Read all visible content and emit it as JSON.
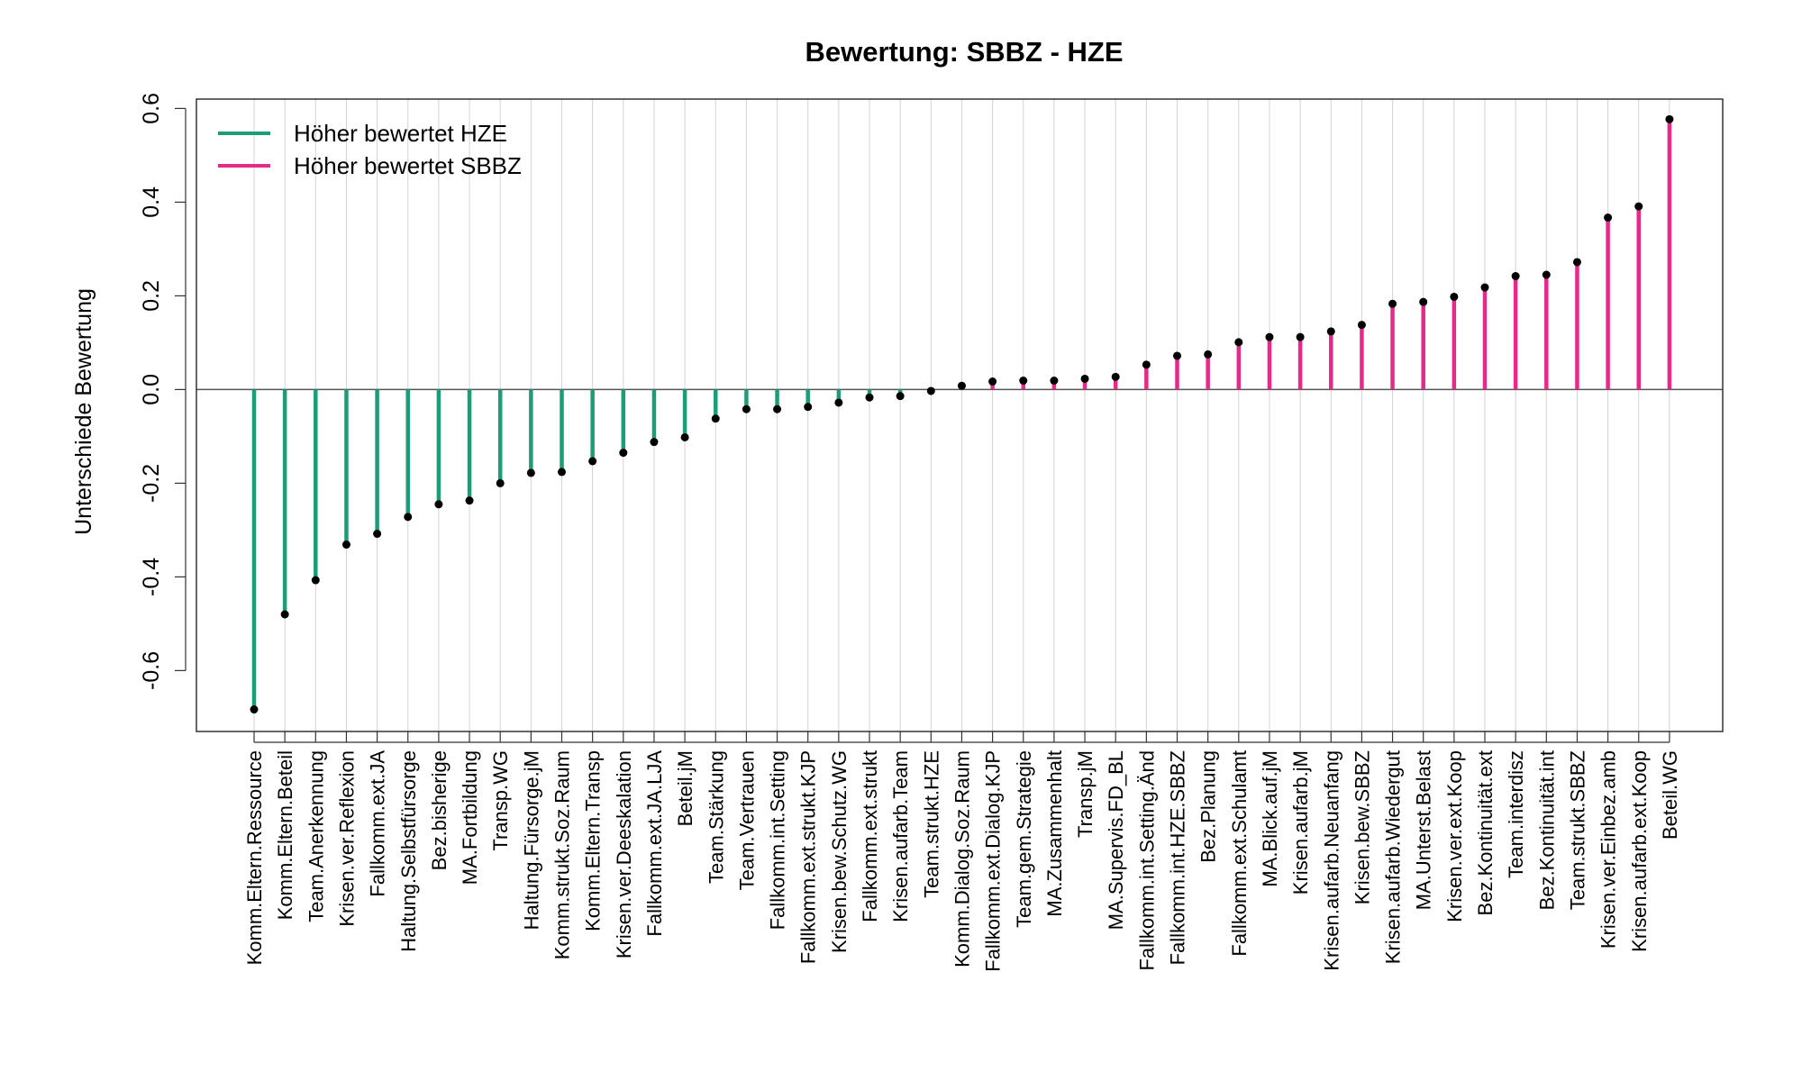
{
  "chart_data": {
    "type": "bar",
    "title": "Bewertung: SBBZ - HZE",
    "xlabel": "",
    "ylabel": "Unterschiede Bewertung",
    "ylim": [
      -0.73,
      0.62
    ],
    "yticks": [
      -0.6,
      -0.4,
      -0.2,
      0.0,
      0.2,
      0.4,
      0.6
    ],
    "ytick_labels": [
      "-0.6",
      "-0.4",
      "-0.2",
      "0.0",
      "0.2",
      "0.4",
      "0.6"
    ],
    "grid": "vertical lines at each category",
    "legend": {
      "position": "top-left",
      "entries": [
        {
          "label": "Höher bewertet HZE",
          "color": "#1b9e77"
        },
        {
          "label": "Höher bewertet SBBZ",
          "color": "#e7298a"
        }
      ]
    },
    "colors": {
      "negative": "#1b9e77",
      "positive": "#e7298a",
      "point": "#000000",
      "grid": "#d3d3d3",
      "zero_line": "#555555"
    },
    "categories": [
      "Komm.Eltern.Ressource",
      "Komm.Eltern.Beteil",
      "Team.Anerkennung",
      "Krisen.ver.Reflexion",
      "Fallkomm.ext.JA",
      "Haltung.Selbstfürsorge",
      "Bez.bisherige",
      "MA.Fortbildung",
      "Transp.WG",
      "Haltung.Fürsorge.jM",
      "Komm.strukt.Soz.Raum",
      "Komm.Eltern.Transp",
      "Krisen.ver.Deeskalation",
      "Fallkomm.ext.JA.LJA",
      "Beteil.jM",
      "Team.Stärkung",
      "Team.Vertrauen",
      "Fallkomm.int.Setting",
      "Fallkomm.ext.strukt.KJP",
      "Krisen.bew.Schutz.WG",
      "Fallkomm.ext.strukt",
      "Krisen.aufarb.Team",
      "Team.strukt.HZE",
      "Komm.Dialog.Soz.Raum",
      "Fallkomm.ext.Dialog.KJP",
      "Team.gem.Strategie",
      "MA.Zusammenhalt",
      "Transp.jM",
      "MA.Supervis.FD_BL",
      "Fallkomm.int.Setting.Änd",
      "Fallkomm.int.HZE.SBBZ",
      "Bez.Planung",
      "Fallkomm.ext.Schulamt",
      "MA.Blick.auf.jM",
      "Krisen.aufarb.jM",
      "Krisen.aufarb.Neuanfang",
      "Krisen.bew.SBBZ",
      "Krisen.aufarb.Wiedergut",
      "MA.Unterst.Belast",
      "Krisen.ver.ext.Koop",
      "Bez.Kontinuität.ext",
      "Team.interdisz",
      "Bez.Kontinuität.int",
      "Team.strukt.SBBZ",
      "Krisen.ver.Einbez.amb",
      "Krisen.aufarb.ext.Koop",
      "Beteil.WG"
    ],
    "values": [
      -0.683,
      -0.48,
      -0.407,
      -0.331,
      -0.308,
      -0.272,
      -0.245,
      -0.237,
      -0.2,
      -0.178,
      -0.176,
      -0.153,
      -0.135,
      -0.112,
      -0.102,
      -0.062,
      -0.042,
      -0.042,
      -0.037,
      -0.028,
      -0.017,
      -0.014,
      -0.003,
      0.008,
      0.017,
      0.019,
      0.019,
      0.023,
      0.027,
      0.053,
      0.072,
      0.075,
      0.101,
      0.112,
      0.112,
      0.124,
      0.138,
      0.183,
      0.187,
      0.198,
      0.218,
      0.242,
      0.245,
      0.272,
      0.367,
      0.391,
      0.577
    ]
  }
}
